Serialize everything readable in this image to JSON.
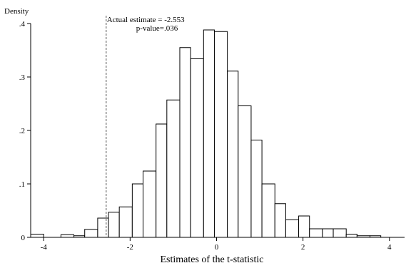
{
  "chart_data": {
    "type": "bar",
    "title": "",
    "xlabel": "Estimates of the t-statistic",
    "ylabel": "Density",
    "xlim": [
      -4.3,
      4.35
    ],
    "ylim": [
      0,
      0.4
    ],
    "x_ticks": [
      -4,
      -2,
      0,
      2,
      4
    ],
    "x_tick_labels": [
      "-4",
      "-2",
      "0",
      "2",
      "4"
    ],
    "y_ticks": [
      0,
      0.1,
      0.2,
      0.3,
      0.4
    ],
    "y_tick_labels": [
      "0",
      ".1",
      ".2",
      ".3",
      ".4"
    ],
    "bin_width": 0.2,
    "bins": [
      {
        "x0": -4.3,
        "x1": -4.0,
        "density": 0.006
      },
      {
        "x0": -3.6,
        "x1": -3.3,
        "density": 0.005
      },
      {
        "x0": -3.3,
        "x1": -3.05,
        "density": 0.003
      },
      {
        "x0": -3.05,
        "x1": -2.75,
        "density": 0.015
      },
      {
        "x0": -2.75,
        "x1": -2.5,
        "density": 0.036
      },
      {
        "x0": -2.5,
        "x1": -2.25,
        "density": 0.047
      },
      {
        "x0": -2.25,
        "x1": -1.95,
        "density": 0.057
      },
      {
        "x0": -1.95,
        "x1": -1.7,
        "density": 0.1
      },
      {
        "x0": -1.7,
        "x1": -1.4,
        "density": 0.124
      },
      {
        "x0": -1.4,
        "x1": -1.15,
        "density": 0.212
      },
      {
        "x0": -1.15,
        "x1": -0.85,
        "density": 0.257
      },
      {
        "x0": -0.85,
        "x1": -0.6,
        "density": 0.355
      },
      {
        "x0": -0.6,
        "x1": -0.3,
        "density": 0.334
      },
      {
        "x0": -0.3,
        "x1": -0.05,
        "density": 0.388
      },
      {
        "x0": -0.05,
        "x1": 0.25,
        "density": 0.385
      },
      {
        "x0": 0.25,
        "x1": 0.5,
        "density": 0.311
      },
      {
        "x0": 0.5,
        "x1": 0.8,
        "density": 0.246
      },
      {
        "x0": 0.8,
        "x1": 1.05,
        "density": 0.182
      },
      {
        "x0": 1.05,
        "x1": 1.35,
        "density": 0.1
      },
      {
        "x0": 1.35,
        "x1": 1.6,
        "density": 0.063
      },
      {
        "x0": 1.6,
        "x1": 1.9,
        "density": 0.033
      },
      {
        "x0": 1.9,
        "x1": 2.15,
        "density": 0.04
      },
      {
        "x0": 2.15,
        "x1": 2.45,
        "density": 0.016
      },
      {
        "x0": 2.45,
        "x1": 2.7,
        "density": 0.016
      },
      {
        "x0": 2.7,
        "x1": 3.0,
        "density": 0.016
      },
      {
        "x0": 3.0,
        "x1": 3.25,
        "density": 0.006
      },
      {
        "x0": 3.25,
        "x1": 3.55,
        "density": 0.003
      },
      {
        "x0": 3.55,
        "x1": 3.8,
        "density": 0.003
      }
    ],
    "reference_line": {
      "x": -2.553,
      "style": "dashed"
    },
    "annotation": {
      "line1": "Actual estimate = -2.553",
      "line2": "p-value=.036"
    },
    "grid": false,
    "legend": "none"
  }
}
